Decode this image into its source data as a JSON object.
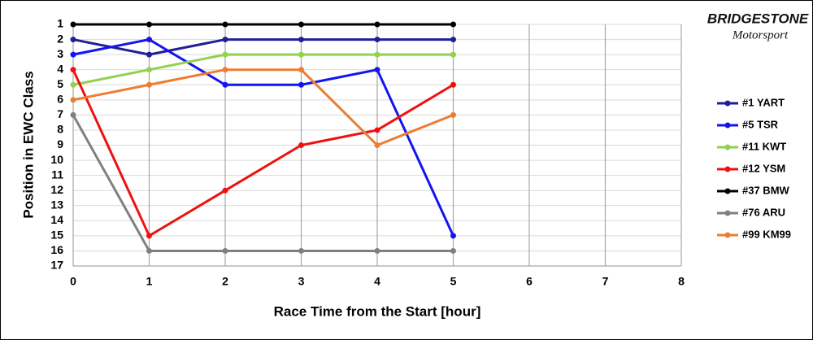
{
  "chart_data": {
    "type": "line",
    "x_label": "Race Time from the Start [hour]",
    "y_label": "Position in EWC Class",
    "logo_text": [
      "BRIDGESTONE",
      "Motorsport"
    ],
    "x": [
      0,
      1,
      2,
      3,
      4,
      5
    ],
    "xlim": [
      0,
      8
    ],
    "xticks": [
      0,
      1,
      2,
      3,
      4,
      5,
      6,
      7,
      8
    ],
    "ylim": [
      17,
      1
    ],
    "yticks": [
      1,
      2,
      3,
      4,
      5,
      6,
      7,
      8,
      9,
      10,
      11,
      12,
      13,
      14,
      15,
      16,
      17
    ],
    "grid": true,
    "legend": "right",
    "series": [
      {
        "name": "#1 YART",
        "color": "#1f1f96",
        "values": [
          2,
          3,
          2,
          2,
          2,
          2
        ]
      },
      {
        "name": "#5 TSR",
        "color": "#1414f0",
        "values": [
          3,
          2,
          5,
          5,
          4,
          15
        ]
      },
      {
        "name": "#11 KWT",
        "color": "#92d050",
        "values": [
          5,
          4,
          3,
          3,
          3,
          3
        ]
      },
      {
        "name": "#12 YSM",
        "color": "#f01010",
        "values": [
          4,
          15,
          12,
          9,
          8,
          5
        ]
      },
      {
        "name": "#37 BMW",
        "color": "#000000",
        "values": [
          1,
          1,
          1,
          1,
          1,
          1
        ]
      },
      {
        "name": "#76 ARU",
        "color": "#808080",
        "values": [
          7,
          16,
          16,
          16,
          16,
          16
        ]
      },
      {
        "name": "#99 KM99",
        "color": "#ed7d31",
        "values": [
          6,
          5,
          4,
          4,
          9,
          7
        ]
      }
    ]
  }
}
